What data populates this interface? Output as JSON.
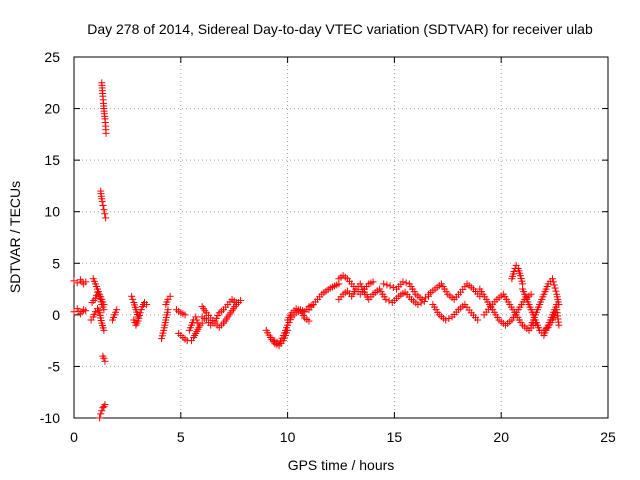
{
  "chart_data": {
    "type": "scatter",
    "title": "Day 278 of 2014, Sidereal Day-to-day VTEC variation (SDTVAR) for receiver ulab",
    "xlabel": "GPS time / hours",
    "ylabel": "SDTVAR / TECUs",
    "xlim": [
      0,
      25
    ],
    "ylim": [
      -10,
      25
    ],
    "xticks": [
      0,
      5,
      10,
      15,
      20,
      25
    ],
    "yticks": [
      -10,
      -5,
      0,
      5,
      10,
      15,
      20,
      25
    ],
    "grid": true,
    "marker": "+",
    "marker_color": "#ff0000",
    "segments": [
      {
        "x": [
          0.0,
          0.15,
          0.3,
          0.45,
          0.55
        ],
        "y": [
          3.3,
          3.1,
          3.4,
          3.0,
          3.2
        ]
      },
      {
        "x": [
          0.0,
          0.15,
          0.3,
          0.45,
          0.55
        ],
        "y": [
          0.3,
          0.6,
          0.1,
          0.5,
          0.4
        ]
      },
      {
        "x": [
          0.9,
          1.0,
          1.1,
          1.2,
          1.3,
          1.4
        ],
        "y": [
          3.5,
          3.0,
          2.5,
          2.0,
          1.5,
          1.0
        ]
      },
      {
        "x": [
          0.8,
          0.9,
          1.0,
          1.1,
          1.2,
          1.3,
          1.4
        ],
        "y": [
          -0.5,
          -0.2,
          0.3,
          0.6,
          0.2,
          -0.8,
          -1.5
        ]
      },
      {
        "x": [
          0.85,
          1.0,
          1.1,
          1.2,
          1.3,
          1.4
        ],
        "y": [
          1.2,
          1.6,
          2.2,
          1.8,
          1.0,
          0.5
        ]
      },
      {
        "x": [
          1.3,
          1.32,
          1.35,
          1.38,
          1.4,
          1.42,
          1.45,
          1.48,
          1.5
        ],
        "y": [
          22.5,
          22.0,
          21.2,
          20.5,
          20.0,
          19.5,
          19.0,
          18.3,
          17.6
        ]
      },
      {
        "x": [
          1.25,
          1.28,
          1.32,
          1.36,
          1.4,
          1.44,
          1.48
        ],
        "y": [
          12.0,
          11.5,
          11.0,
          10.6,
          10.2,
          9.8,
          9.4
        ]
      },
      {
        "x": [
          1.35,
          1.4,
          1.45
        ],
        "y": [
          -4.0,
          -4.2,
          -4.5
        ]
      },
      {
        "x": [
          1.2,
          1.25,
          1.3,
          1.35,
          1.4,
          1.45
        ],
        "y": [
          -10.0,
          -9.6,
          -9.3,
          -9.0,
          -8.9,
          -8.7
        ]
      },
      {
        "x": [
          1.8,
          1.9,
          2.0
        ],
        "y": [
          -0.5,
          0.0,
          0.5
        ]
      },
      {
        "x": [
          2.7,
          2.8,
          2.9,
          3.0
        ],
        "y": [
          1.8,
          1.2,
          0.5,
          -0.2
        ]
      },
      {
        "x": [
          2.8,
          2.9,
          3.0,
          3.1,
          3.2,
          3.3,
          3.4
        ],
        "y": [
          -0.5,
          -1.0,
          -0.6,
          0.2,
          0.8,
          1.2,
          1.0
        ]
      },
      {
        "x": [
          4.1,
          4.2,
          4.3,
          4.4
        ],
        "y": [
          -2.3,
          -1.5,
          -0.5,
          0.5
        ]
      },
      {
        "x": [
          4.3,
          4.4,
          4.5
        ],
        "y": [
          1.0,
          1.5,
          1.8
        ]
      },
      {
        "x": [
          4.8,
          5.0,
          5.2
        ],
        "y": [
          0.5,
          0.2,
          0.0
        ]
      },
      {
        "x": [
          4.9,
          5.1,
          5.3
        ],
        "y": [
          -1.8,
          -2.2,
          -2.5
        ]
      },
      {
        "x": [
          5.4,
          5.5,
          5.6,
          5.7,
          5.8
        ],
        "y": [
          -1.5,
          -1.0,
          -0.5,
          -0.2,
          -0.8
        ]
      },
      {
        "x": [
          5.5,
          5.6,
          5.7,
          5.8,
          5.9,
          6.0
        ],
        "y": [
          -2.5,
          -2.2,
          -1.8,
          -1.4,
          -1.0,
          -0.8
        ]
      },
      {
        "x": [
          6.0,
          6.2,
          6.4,
          6.6,
          6.8,
          7.0,
          7.2,
          7.4,
          7.6
        ],
        "y": [
          -0.2,
          -0.5,
          -1.0,
          -0.6,
          0.2,
          0.5,
          1.0,
          1.5,
          1.2
        ]
      },
      {
        "x": [
          6.0,
          6.2,
          6.4,
          6.6,
          6.8,
          7.0,
          7.2,
          7.4,
          7.6,
          7.8
        ],
        "y": [
          0.8,
          0.2,
          -0.3,
          -0.8,
          -1.2,
          -0.8,
          -0.2,
          0.4,
          1.0,
          1.4
        ]
      },
      {
        "x": [
          9.0,
          9.2,
          9.4,
          9.6,
          9.8,
          10.0
        ],
        "y": [
          -1.5,
          -2.2,
          -2.8,
          -3.0,
          -2.5,
          -1.5
        ]
      },
      {
        "x": [
          9.4,
          9.6,
          9.8,
          10.0,
          10.2,
          10.4,
          10.6,
          10.8,
          11.0,
          11.2
        ],
        "y": [
          -2.5,
          -2.8,
          -2.0,
          -1.0,
          -0.2,
          0.2,
          0.5,
          0.3,
          0.8,
          1.0
        ]
      },
      {
        "x": [
          10.0,
          10.2,
          10.4,
          10.6,
          10.8,
          11.0
        ],
        "y": [
          -0.5,
          0.2,
          0.6,
          0.4,
          -0.3,
          -0.6
        ]
      },
      {
        "x": [
          11.0,
          11.2,
          11.4,
          11.6,
          11.8,
          12.0,
          12.2,
          12.4
        ],
        "y": [
          0.5,
          1.0,
          1.5,
          2.0,
          2.3,
          2.6,
          2.8,
          3.0
        ]
      },
      {
        "x": [
          12.4,
          12.6,
          12.8,
          13.0,
          13.2,
          13.4,
          13.6,
          13.8,
          14.0
        ],
        "y": [
          3.5,
          3.8,
          3.5,
          3.0,
          2.5,
          2.0,
          2.5,
          3.0,
          3.2
        ]
      },
      {
        "x": [
          12.4,
          12.6,
          12.8,
          13.0,
          13.2,
          13.4,
          13.6,
          13.8,
          14.0
        ],
        "y": [
          1.5,
          2.0,
          2.3,
          1.8,
          2.5,
          3.0,
          2.2,
          1.5,
          2.0
        ]
      },
      {
        "x": [
          14.0,
          14.3,
          14.6,
          14.9,
          15.2,
          15.5,
          15.8,
          16.1,
          16.4
        ],
        "y": [
          2.0,
          2.5,
          1.5,
          1.2,
          1.8,
          2.2,
          1.5,
          1.0,
          1.3
        ]
      },
      {
        "x": [
          14.5,
          14.8,
          15.1,
          15.4,
          15.7,
          16.0,
          16.3,
          16.6
        ],
        "y": [
          3.0,
          2.8,
          2.5,
          3.2,
          3.0,
          2.0,
          1.5,
          1.8
        ]
      },
      {
        "x": [
          16.6,
          16.9,
          17.2,
          17.5,
          17.8,
          18.1,
          18.4,
          18.7,
          19.0
        ],
        "y": [
          2.0,
          2.5,
          3.0,
          2.0,
          1.5,
          2.2,
          3.0,
          2.5,
          1.8
        ]
      },
      {
        "x": [
          16.8,
          17.1,
          17.4,
          17.7,
          18.0,
          18.3,
          18.6,
          18.9
        ],
        "y": [
          1.0,
          0.0,
          -0.5,
          -0.2,
          0.5,
          1.0,
          0.2,
          -0.5
        ]
      },
      {
        "x": [
          19.0,
          19.3,
          19.6,
          19.9,
          20.2,
          20.5,
          20.8,
          21.1,
          21.4
        ],
        "y": [
          2.5,
          1.5,
          0.5,
          -0.5,
          -1.0,
          -0.5,
          0.5,
          1.5,
          2.0
        ]
      },
      {
        "x": [
          19.2,
          19.5,
          19.8,
          20.1,
          20.4,
          20.7,
          21.0,
          21.3,
          21.6
        ],
        "y": [
          0.0,
          0.8,
          1.5,
          2.0,
          1.0,
          0.0,
          -1.0,
          -1.5,
          -0.8
        ]
      },
      {
        "x": [
          20.5,
          20.6,
          20.7,
          20.8,
          20.9,
          21.0
        ],
        "y": [
          3.5,
          4.2,
          4.8,
          4.5,
          3.8,
          3.0
        ]
      },
      {
        "x": [
          21.0,
          21.2,
          21.4,
          21.6,
          21.8,
          22.0,
          22.2,
          22.4,
          22.6
        ],
        "y": [
          2.5,
          1.5,
          0.5,
          -0.5,
          -1.5,
          -2.0,
          -1.0,
          0.0,
          1.0
        ]
      },
      {
        "x": [
          21.4,
          21.6,
          21.8,
          22.0,
          22.2,
          22.4,
          22.6,
          22.7
        ],
        "y": [
          -1.0,
          0.0,
          1.0,
          2.0,
          3.0,
          3.5,
          2.0,
          1.0
        ]
      },
      {
        "x": [
          22.0,
          22.2,
          22.4,
          22.6,
          22.7
        ],
        "y": [
          -1.5,
          -1.2,
          -0.5,
          0.5,
          -1.0
        ]
      }
    ]
  }
}
